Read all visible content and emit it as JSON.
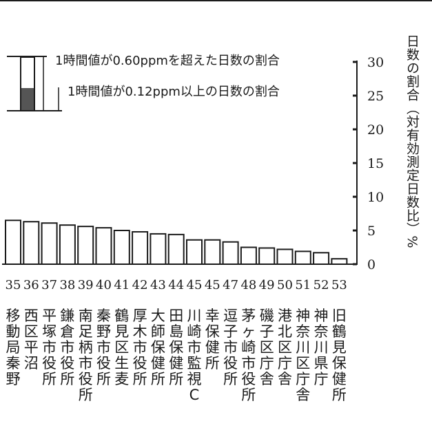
{
  "chart_data": {
    "type": "bar",
    "ylabel": "日数の割合（対有効測定日数比）%",
    "ylim": [
      0,
      30
    ],
    "yticks": [
      0,
      5,
      10,
      15,
      20,
      25,
      30
    ],
    "legend": {
      "placement": "top-left",
      "entries": [
        "1時間値が0.60ppmを超えた日数の割合",
        "1時間値が0.12ppm以上の日数の割合"
      ]
    },
    "categories": [
      "35",
      "36",
      "37",
      "38",
      "39",
      "40",
      "41",
      "42",
      "43",
      "44",
      "45",
      "45",
      "47",
      "48",
      "49",
      "50",
      "51",
      "52",
      "53"
    ],
    "station_names": [
      "移動局秦野",
      "西区平沼",
      "平塚市役所",
      "鎌倉市役所",
      "南足柄市役所",
      "秦野市役所",
      "鶴見区生麦",
      "厚木市役所",
      "大師保健所",
      "田島保健所",
      "川崎市監視C",
      "幸保健所",
      "逗子市役所",
      "茅ヶ崎市役所",
      "磯子区庁舎",
      "港北区庁舎",
      "神奈川区庁舎",
      "神奈川県庁",
      "旧鶴見保健所"
    ],
    "series": [
      {
        "name": "1時間値が0.12ppm以上の日数の割合",
        "values": [
          6.5,
          6.3,
          6.1,
          5.8,
          5.6,
          5.4,
          5.0,
          4.8,
          4.5,
          4.4,
          3.6,
          3.6,
          3.3,
          2.5,
          2.4,
          2.2,
          1.9,
          1.7,
          0.8
        ]
      },
      {
        "name": "1時間値が0.60ppmを超えた日数の割合",
        "values": [
          0,
          0,
          0,
          0,
          0,
          0,
          0,
          0,
          0,
          0,
          0,
          0,
          0,
          0,
          0,
          0,
          0,
          0,
          0
        ]
      }
    ],
    "colors": {
      "bar_fill": "#ffffff",
      "bar_stroke": "#1a1a1a",
      "shaded": "#555555"
    }
  }
}
